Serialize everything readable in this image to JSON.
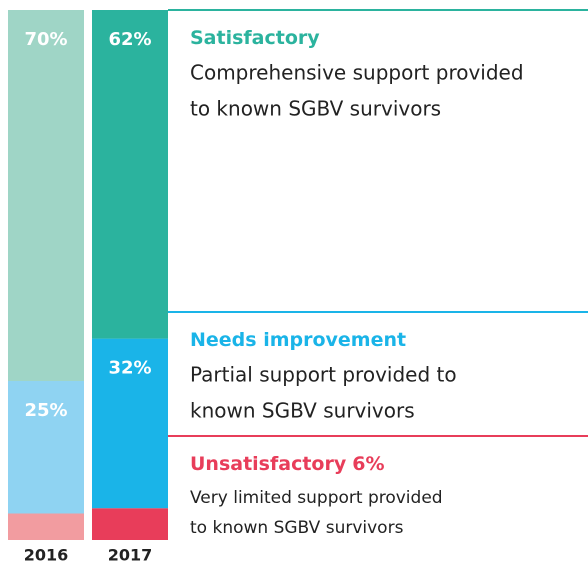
{
  "chart_data": {
    "type": "stacked-bar",
    "categories": [
      "2016",
      "2017"
    ],
    "ylim": [
      0,
      100
    ],
    "series": [
      {
        "name": "Satisfactory",
        "color": [
          "#9fd5c6",
          "#2bb39e"
        ],
        "values": [
          70,
          62
        ],
        "value_labels": [
          "70%",
          "62%"
        ],
        "description": [
          "Comprehensive support provided",
          "to known SGBV survivors"
        ]
      },
      {
        "name": "Needs improvement",
        "color": [
          "#8fd3f2",
          "#1ab4e8"
        ],
        "values": [
          25,
          32
        ],
        "value_labels": [
          "25%",
          "32%"
        ],
        "description": [
          "Partial support provided to",
          "known SGBV survivors"
        ]
      },
      {
        "name": "Unsatisfactory",
        "color": [
          "#f29ca0",
          "#e83d5a"
        ],
        "values": [
          5,
          6
        ],
        "value_labels": [
          null,
          "6%"
        ],
        "description": [
          "Very limited support provided",
          "to known SGBV survivors"
        ]
      }
    ]
  }
}
